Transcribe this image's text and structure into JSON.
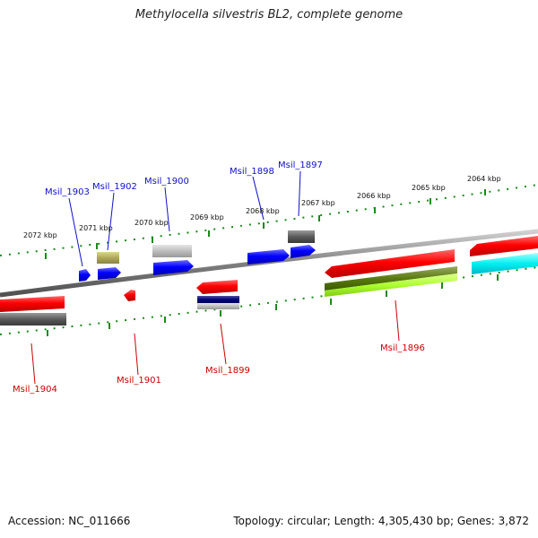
{
  "title": "Methylocella silvestris BL2, complete genome",
  "footer": {
    "accession": "Accession: NC_011666",
    "summary": "Topology: circular; Length: 4,305,430 bp; Genes: 3,872"
  },
  "colors": {
    "forward_gene": "#0000ff",
    "reverse_gene": "#ff0000",
    "forward_label": "#1010c8",
    "reverse_label": "#cc0000",
    "backbone": "#8a8a8a",
    "ruler": "#1a8a1a"
  },
  "scale_labels": [
    "2072 kbp",
    "2071 kbp",
    "2070 kbp",
    "2069 kbp",
    "2068 kbp",
    "2067 kbp",
    "2066 kbp",
    "2065 kbp",
    "2064 kbp"
  ],
  "gene_labels": {
    "forward": [
      "Msil_1903",
      "Msil_1902",
      "Msil_1900",
      "Msil_1898",
      "Msil_1897"
    ],
    "reverse": [
      "Msil_1904",
      "Msil_1901",
      "Msil_1899",
      "Msil_1896"
    ]
  }
}
